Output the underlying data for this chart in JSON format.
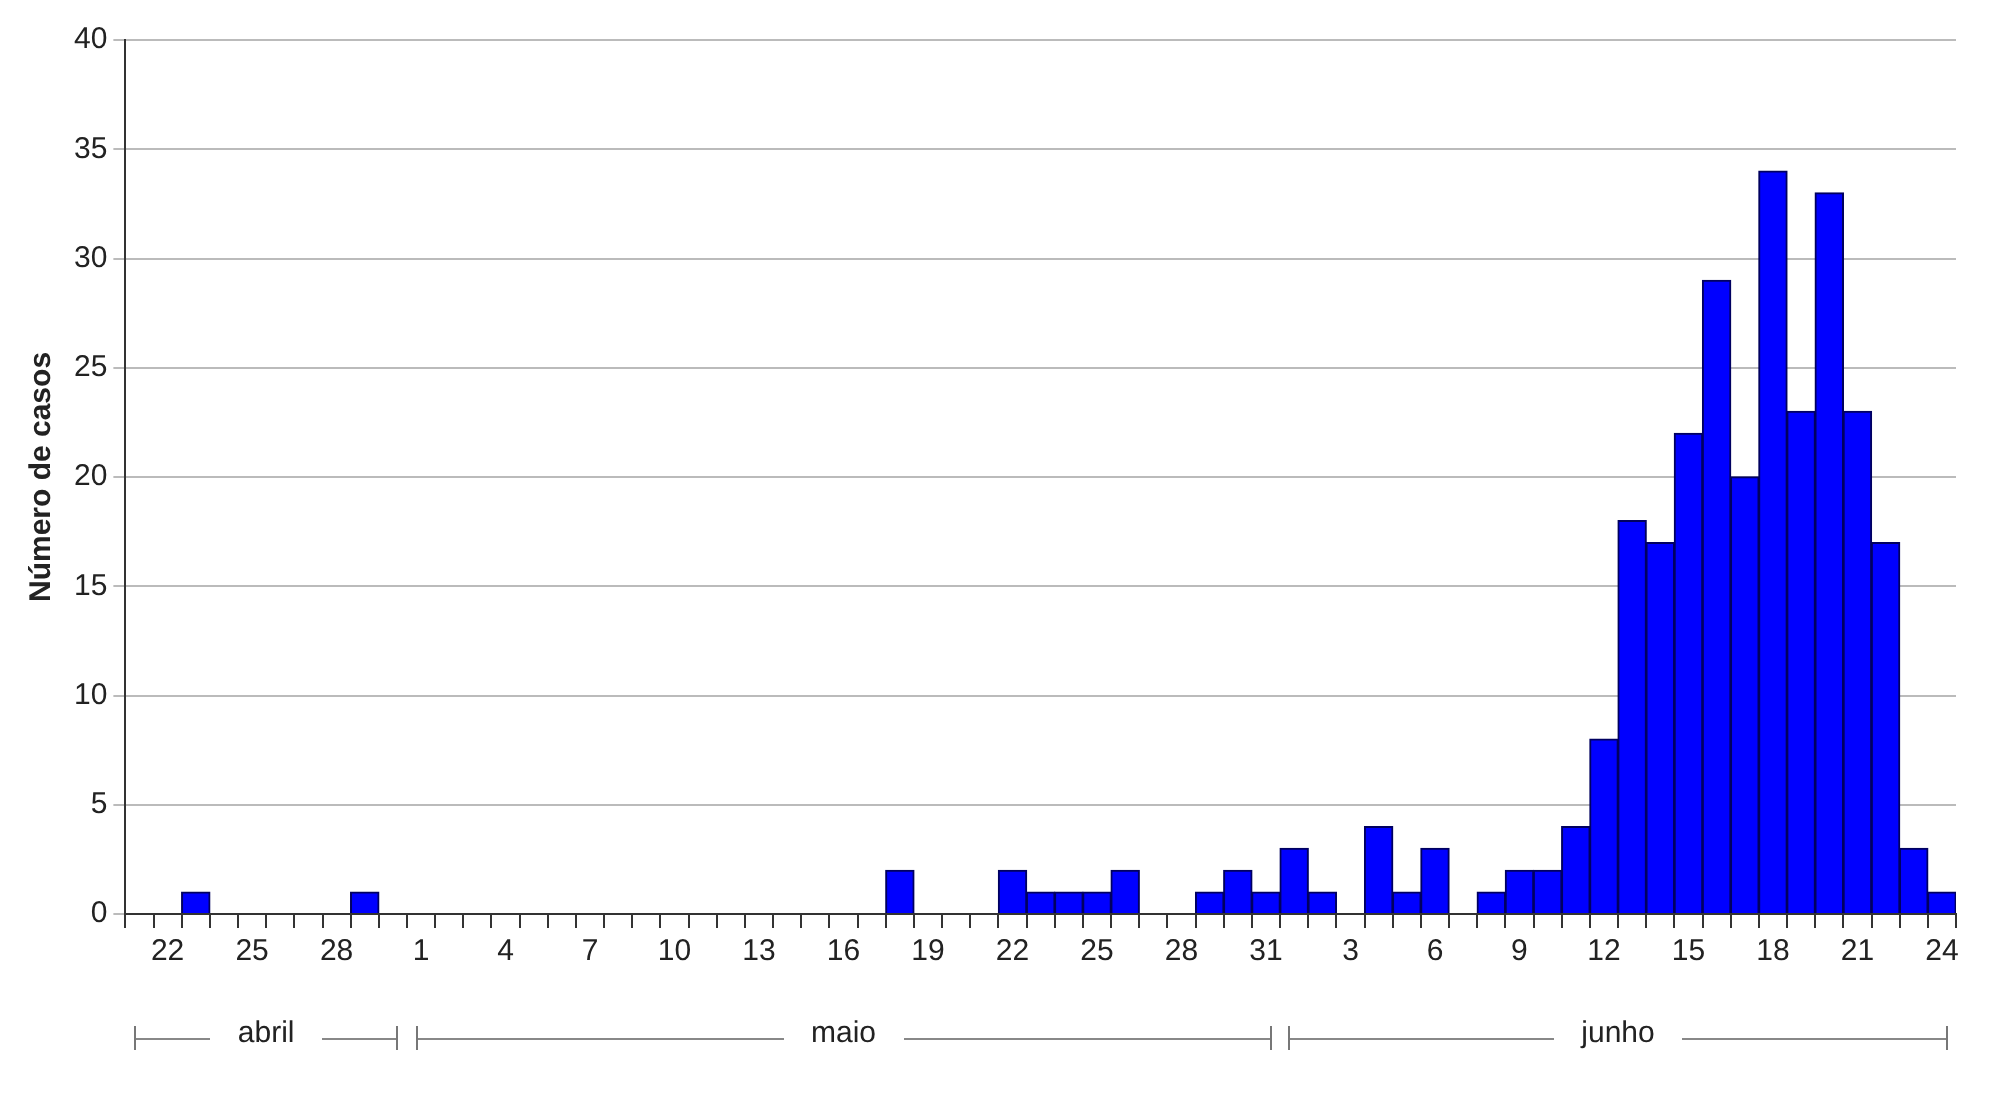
{
  "chart_data": {
    "type": "bar",
    "ylabel": "Número de casos",
    "categories": [
      null,
      "22",
      null,
      null,
      "25",
      null,
      null,
      "28",
      null,
      null,
      "1",
      null,
      null,
      "4",
      null,
      null,
      "7",
      null,
      null,
      "10",
      null,
      null,
      "13",
      null,
      null,
      "16",
      null,
      null,
      "19",
      null,
      null,
      "22",
      null,
      null,
      "25",
      null,
      null,
      "28",
      null,
      null,
      "31",
      null,
      null,
      "3",
      null,
      null,
      "6",
      null,
      null,
      "9",
      null,
      null,
      "12",
      null,
      null,
      "15",
      null,
      null,
      "18",
      null,
      null,
      "21",
      null,
      null,
      "24"
    ],
    "values": [
      0,
      0,
      1,
      0,
      0,
      0,
      0,
      0,
      1,
      0,
      0,
      0,
      0,
      0,
      0,
      0,
      0,
      0,
      0,
      0,
      0,
      0,
      0,
      0,
      0,
      0,
      0,
      2,
      0,
      0,
      0,
      2,
      1,
      1,
      1,
      2,
      0,
      0,
      1,
      2,
      1,
      3,
      1,
      0,
      4,
      1,
      3,
      0,
      1,
      2,
      2,
      4,
      8,
      18,
      17,
      22,
      29,
      20,
      34,
      23,
      33,
      23,
      17,
      3,
      1
    ],
    "color": "#0000ff",
    "ylim": [
      0,
      40
    ],
    "yticks": [
      0,
      5,
      10,
      15,
      20,
      25,
      30,
      35,
      40
    ],
    "grid": "y",
    "annotations": [
      "abril",
      "maio",
      "junho"
    ]
  }
}
